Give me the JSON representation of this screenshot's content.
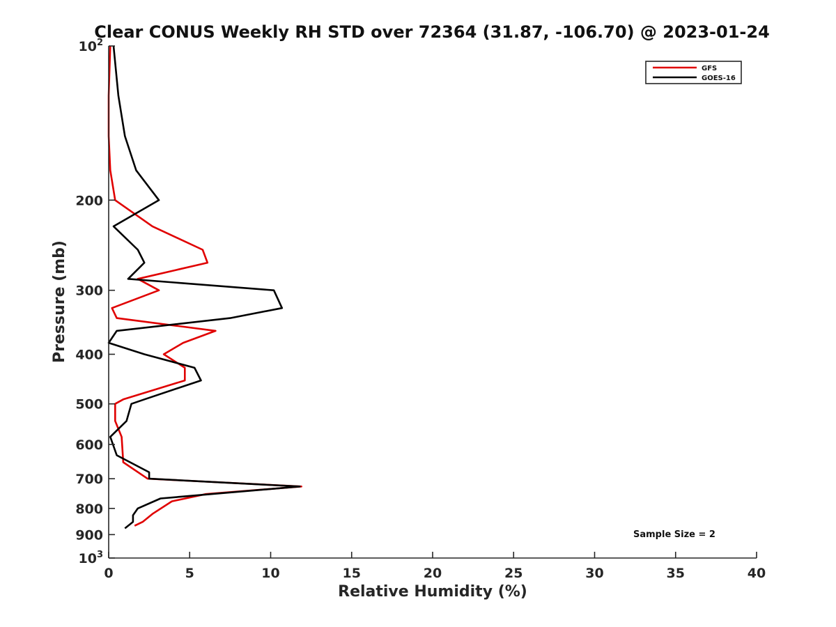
{
  "chart_data": {
    "type": "line",
    "title": "Clear CONUS Weekly RH STD over 72364 (31.87, -106.70) @ 2023-01-24",
    "xlabel": "Relative Humidity (%)",
    "ylabel": "Pressure (mb)",
    "xlim": [
      0,
      40
    ],
    "ylim": [
      100,
      1000
    ],
    "y_scale": "log",
    "y_reversed": true,
    "x_ticks": [
      "0",
      "5",
      "10",
      "15",
      "20",
      "25",
      "30",
      "35",
      "40"
    ],
    "y_ticks": [
      {
        "value": 100,
        "label": "10",
        "sup": "2"
      },
      {
        "value": 200,
        "label": "200"
      },
      {
        "value": 300,
        "label": "300"
      },
      {
        "value": 400,
        "label": "400"
      },
      {
        "value": 500,
        "label": "500"
      },
      {
        "value": 600,
        "label": "600"
      },
      {
        "value": 700,
        "label": "700"
      },
      {
        "value": 800,
        "label": "800"
      },
      {
        "value": 900,
        "label": "900"
      },
      {
        "value": 1000,
        "label": "10",
        "sup": "3"
      }
    ],
    "grid": false,
    "legend_position": "top-right",
    "annotation": "Sample Size = 2",
    "series": [
      {
        "name": "GFS",
        "color": "#e00000",
        "points": [
          {
            "x": 0.1,
            "y": 100
          },
          {
            "x": 0.0,
            "y": 125
          },
          {
            "x": 0.0,
            "y": 150
          },
          {
            "x": 0.1,
            "y": 175
          },
          {
            "x": 0.4,
            "y": 200
          },
          {
            "x": 2.7,
            "y": 225
          },
          {
            "x": 5.8,
            "y": 250
          },
          {
            "x": 6.1,
            "y": 265
          },
          {
            "x": 1.8,
            "y": 285
          },
          {
            "x": 3.1,
            "y": 300
          },
          {
            "x": 0.2,
            "y": 325
          },
          {
            "x": 0.5,
            "y": 340
          },
          {
            "x": 6.6,
            "y": 360
          },
          {
            "x": 4.6,
            "y": 380
          },
          {
            "x": 3.4,
            "y": 400
          },
          {
            "x": 4.7,
            "y": 425
          },
          {
            "x": 4.7,
            "y": 450
          },
          {
            "x": 0.9,
            "y": 490
          },
          {
            "x": 0.4,
            "y": 500
          },
          {
            "x": 0.4,
            "y": 540
          },
          {
            "x": 0.8,
            "y": 580
          },
          {
            "x": 0.9,
            "y": 650
          },
          {
            "x": 2.4,
            "y": 700
          },
          {
            "x": 11.9,
            "y": 725
          },
          {
            "x": 6.0,
            "y": 750
          },
          {
            "x": 3.9,
            "y": 775
          },
          {
            "x": 2.7,
            "y": 820
          },
          {
            "x": 2.1,
            "y": 850
          },
          {
            "x": 1.6,
            "y": 865
          }
        ]
      },
      {
        "name": "GOES-16",
        "color": "#000000",
        "points": [
          {
            "x": 0.3,
            "y": 100
          },
          {
            "x": 0.6,
            "y": 125
          },
          {
            "x": 1.0,
            "y": 150
          },
          {
            "x": 1.7,
            "y": 175
          },
          {
            "x": 3.1,
            "y": 200
          },
          {
            "x": 0.3,
            "y": 225
          },
          {
            "x": 1.8,
            "y": 250
          },
          {
            "x": 2.2,
            "y": 265
          },
          {
            "x": 1.2,
            "y": 285
          },
          {
            "x": 10.2,
            "y": 300
          },
          {
            "x": 10.7,
            "y": 325
          },
          {
            "x": 7.5,
            "y": 340
          },
          {
            "x": 0.5,
            "y": 360
          },
          {
            "x": 0.0,
            "y": 380
          },
          {
            "x": 2.2,
            "y": 400
          },
          {
            "x": 5.3,
            "y": 425
          },
          {
            "x": 5.7,
            "y": 450
          },
          {
            "x": 2.2,
            "y": 490
          },
          {
            "x": 1.4,
            "y": 500
          },
          {
            "x": 1.1,
            "y": 540
          },
          {
            "x": 0.1,
            "y": 580
          },
          {
            "x": 0.5,
            "y": 630
          },
          {
            "x": 2.5,
            "y": 680
          },
          {
            "x": 2.5,
            "y": 700
          },
          {
            "x": 11.8,
            "y": 725
          },
          {
            "x": 3.2,
            "y": 765
          },
          {
            "x": 1.8,
            "y": 800
          },
          {
            "x": 1.5,
            "y": 825
          },
          {
            "x": 1.5,
            "y": 850
          },
          {
            "x": 1.0,
            "y": 875
          }
        ]
      }
    ]
  }
}
